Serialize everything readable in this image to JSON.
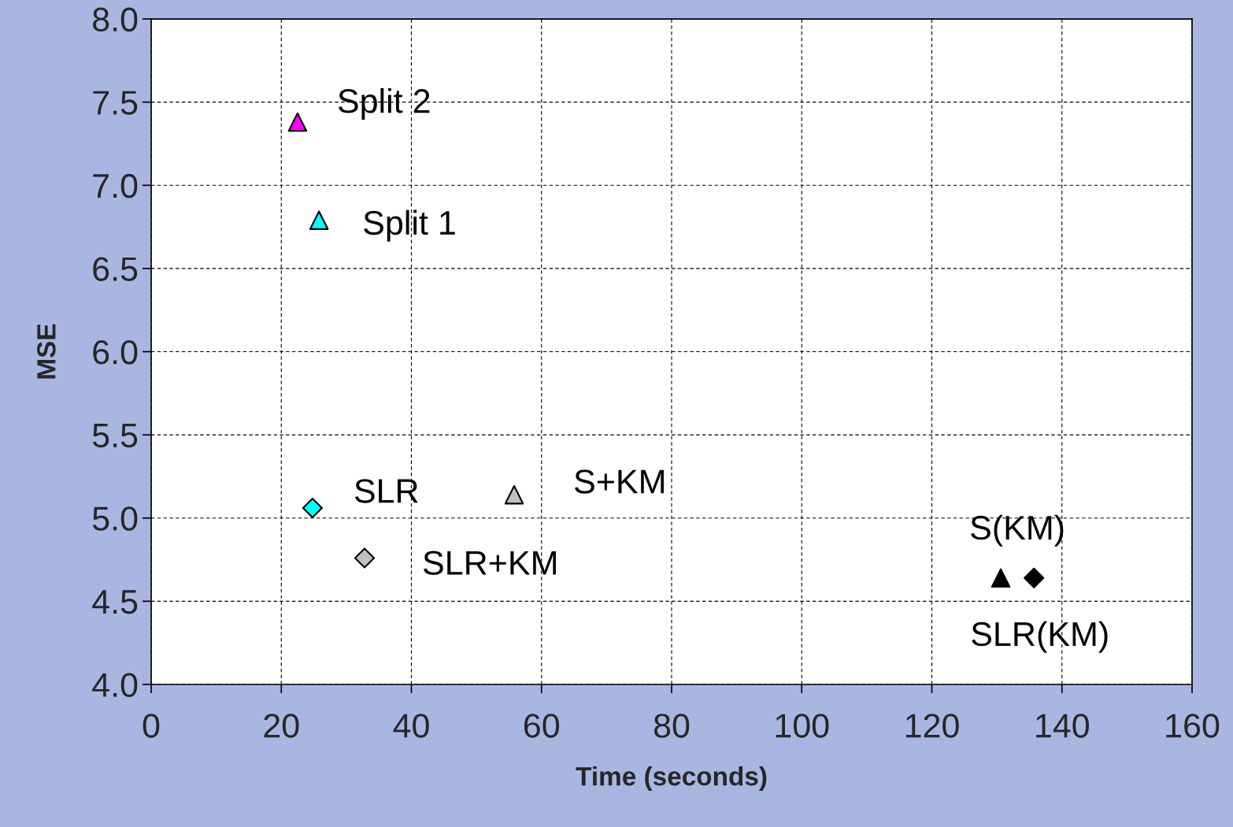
{
  "chart_data": {
    "type": "scatter",
    "xlabel": "Time (seconds)",
    "ylabel": "MSE",
    "xlim": [
      0,
      160
    ],
    "xticks": [
      0,
      20,
      40,
      60,
      80,
      100,
      120,
      140,
      160
    ],
    "ylim": [
      4.0,
      8.0
    ],
    "yticks": [
      {
        "value": 4.0,
        "label": "4.0"
      },
      {
        "value": 4.5,
        "label": "4.5"
      },
      {
        "value": 5.0,
        "label": "5.0"
      },
      {
        "value": 5.5,
        "label": "5.5"
      },
      {
        "value": 6.0,
        "label": "6.0"
      },
      {
        "value": 6.5,
        "label": "6.5"
      },
      {
        "value": 7.0,
        "label": "7.0"
      },
      {
        "value": 7.5,
        "label": "7.5"
      },
      {
        "value": 8.0,
        "label": "8.0"
      }
    ],
    "grid": true,
    "line_style": "dashed",
    "legend": false,
    "series": [
      {
        "name": "Split 2",
        "color": "#ff00ff",
        "marker": "triangle",
        "x": [
          22.5
        ],
        "values": [
          7.38
        ]
      },
      {
        "name": "Split 1",
        "color": "#00ffff",
        "marker": "triangle",
        "x": [
          25.8
        ],
        "values": [
          6.79
        ]
      },
      {
        "name": "SLR",
        "color": "#00ffff",
        "marker": "diamond",
        "x": [
          24.8
        ],
        "values": [
          5.06
        ]
      },
      {
        "name": "S+KM",
        "color": "#c0c0c0",
        "marker": "triangle",
        "x": [
          55.8
        ],
        "values": [
          5.14
        ]
      },
      {
        "name": "SLR+KM",
        "color": "#c0c0c0",
        "marker": "diamond",
        "x": [
          32.8
        ],
        "values": [
          4.76
        ]
      },
      {
        "name": "S(KM)",
        "color": "#000000",
        "marker": "triangle",
        "x": [
          130.6
        ],
        "values": [
          4.64
        ]
      },
      {
        "name": "SLR(KM)",
        "color": "#000000",
        "marker": "diamond",
        "x": [
          135.7
        ],
        "values": [
          4.64
        ]
      }
    ]
  }
}
